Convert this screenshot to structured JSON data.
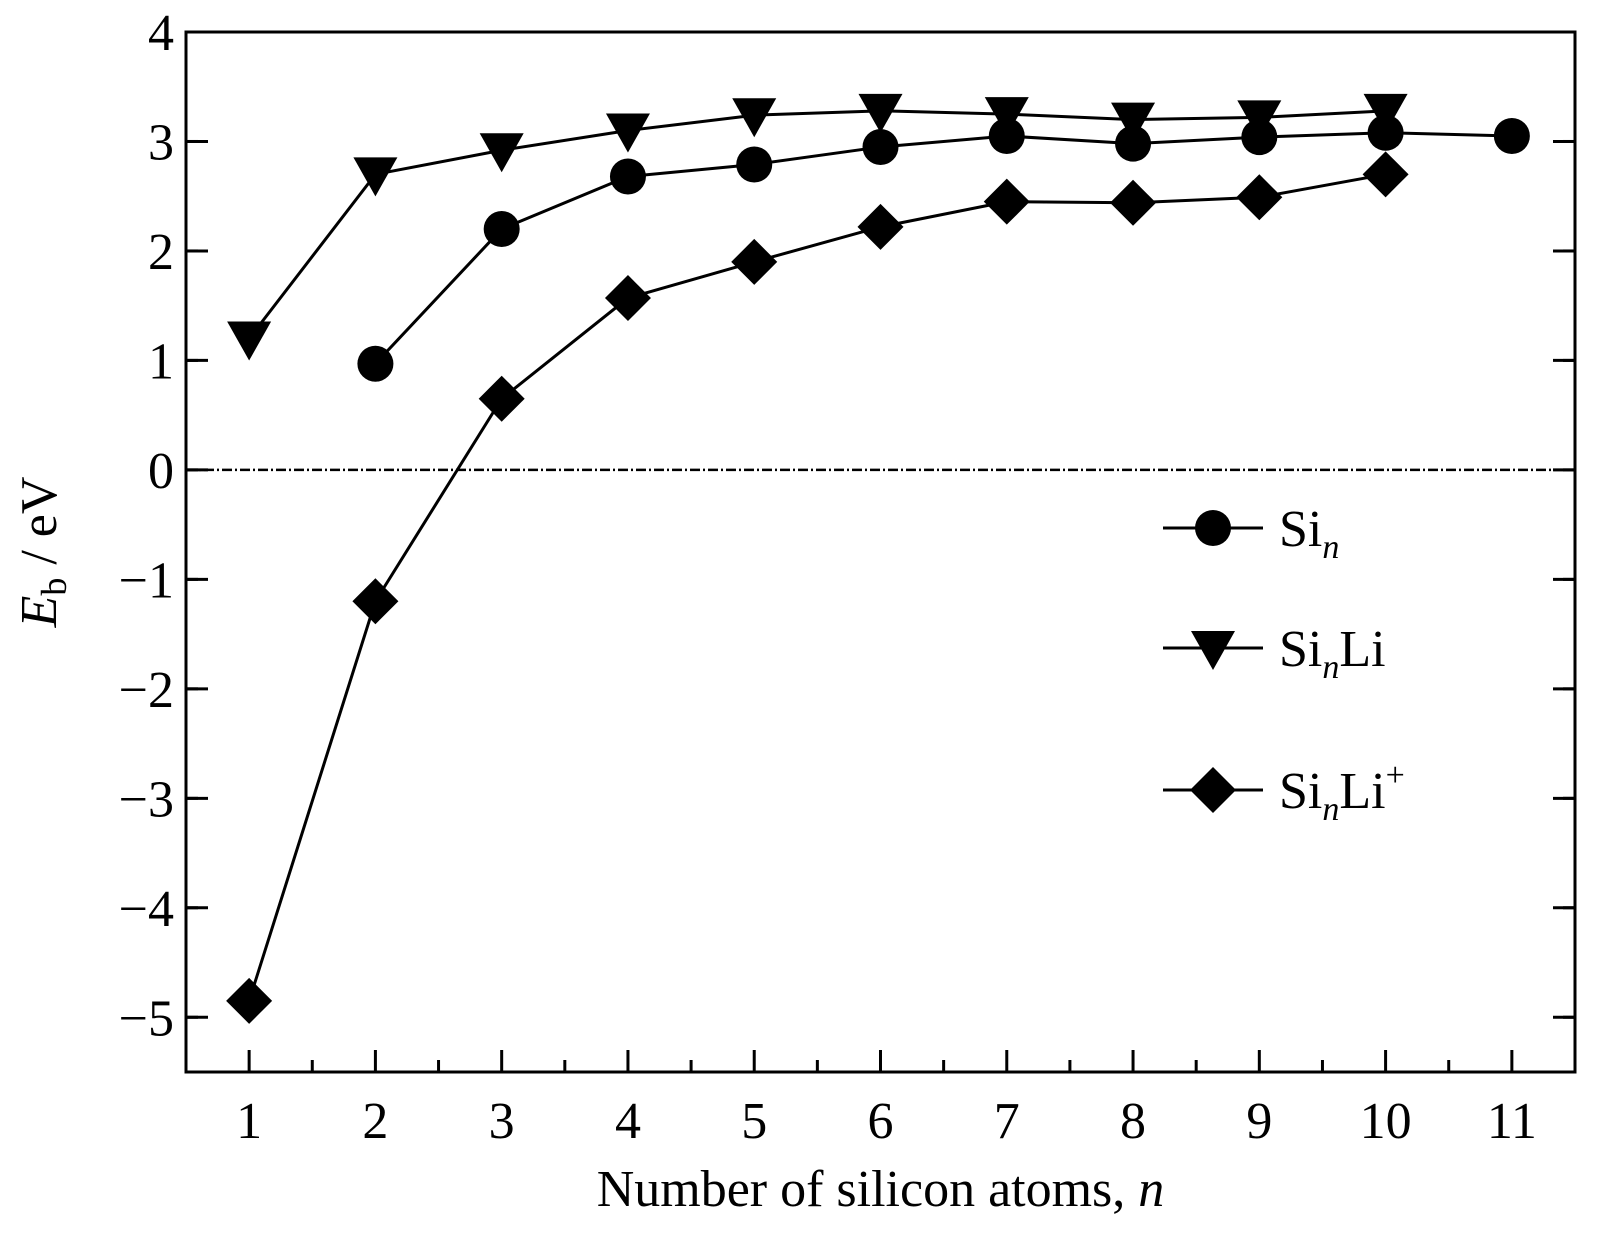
{
  "chart_data": {
    "type": "line",
    "xlabel": {
      "text": "Number of silicon atoms, ",
      "italic": "n"
    },
    "ylabel": {
      "symbol": "E",
      "subscript": "b",
      "unit": " / eV"
    },
    "xlim": [
      0.5,
      11.5
    ],
    "ylim": [
      -5.5,
      4
    ],
    "x_ticks": [
      1,
      2,
      3,
      4,
      5,
      6,
      7,
      8,
      9,
      10,
      11
    ],
    "x_tick_labels": [
      "1",
      "2",
      "3",
      "4",
      "5",
      "6",
      "7",
      "8",
      "9",
      "10",
      "11"
    ],
    "y_ticks": [
      -5,
      -4,
      -3,
      -2,
      -1,
      0,
      1,
      2,
      3,
      4
    ],
    "y_tick_labels": [
      "−5",
      "−4",
      "−3",
      "−2",
      "−1",
      "0",
      "1",
      "2",
      "3",
      "4"
    ],
    "zero_line": true,
    "grid": false,
    "legend_position": "right",
    "series": [
      {
        "legend_base": "Si",
        "legend_sub": "n",
        "legend_suffix": "",
        "legend_sup": "",
        "marker": "circle",
        "color": "#000000",
        "x": [
          2,
          3,
          4,
          5,
          6,
          7,
          8,
          9,
          10,
          11
        ],
        "values": [
          0.97,
          2.2,
          2.68,
          2.79,
          2.95,
          3.05,
          2.98,
          3.04,
          3.08,
          3.05
        ]
      },
      {
        "legend_base": "Si",
        "legend_sub": "n",
        "legend_suffix": "Li",
        "legend_sup": "",
        "marker": "triangle-down",
        "color": "#000000",
        "x": [
          1,
          2,
          3,
          4,
          5,
          6,
          7,
          8,
          9,
          10
        ],
        "values": [
          1.2,
          2.7,
          2.92,
          3.1,
          3.24,
          3.28,
          3.25,
          3.2,
          3.22,
          3.28
        ]
      },
      {
        "legend_base": "Si",
        "legend_sub": "n",
        "legend_suffix": "Li",
        "legend_sup": "+",
        "marker": "diamond",
        "color": "#000000",
        "x": [
          1,
          2,
          3,
          4,
          5,
          6,
          7,
          8,
          9,
          10
        ],
        "values": [
          -4.85,
          -1.2,
          0.65,
          1.57,
          1.9,
          2.22,
          2.45,
          2.44,
          2.49,
          2.7
        ]
      }
    ]
  }
}
